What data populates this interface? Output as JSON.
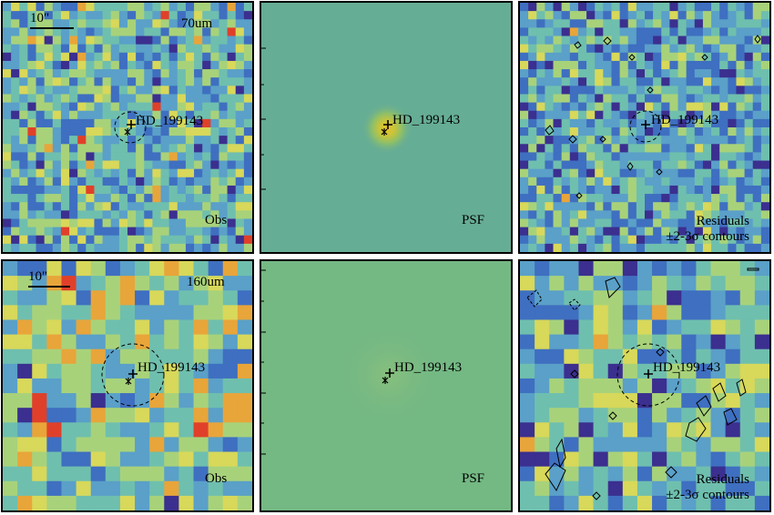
{
  "figure": {
    "rows": [
      {
        "band": "70um",
        "panels": [
          {
            "kind": "Obs",
            "label": "Obs",
            "target": "HD_199143",
            "scalebar": "10\"",
            "band_label": "70um"
          },
          {
            "kind": "PSF",
            "label": "PSF",
            "target": "HD_199143"
          },
          {
            "kind": "Residuals",
            "label": "Residuals",
            "label2": "±2-3σ contours",
            "target": "HD_199143"
          }
        ]
      },
      {
        "band": "160um",
        "panels": [
          {
            "kind": "Obs",
            "label": "Obs",
            "target": "HD_199143",
            "scalebar": "10\"",
            "band_label": "160um"
          },
          {
            "kind": "PSF",
            "label": "PSF",
            "target": "HD_199143"
          },
          {
            "kind": "Residuals",
            "label": "Residuals",
            "label2": "±2-3σ contours",
            "target": "HD_199143"
          }
        ]
      }
    ],
    "colormap": [
      "#3b2f8f",
      "#3f6fc0",
      "#5aa0c8",
      "#6fbfae",
      "#a8d27a",
      "#d8d85a",
      "#e8a53a",
      "#e0402a"
    ],
    "marker_color": "#000000"
  }
}
